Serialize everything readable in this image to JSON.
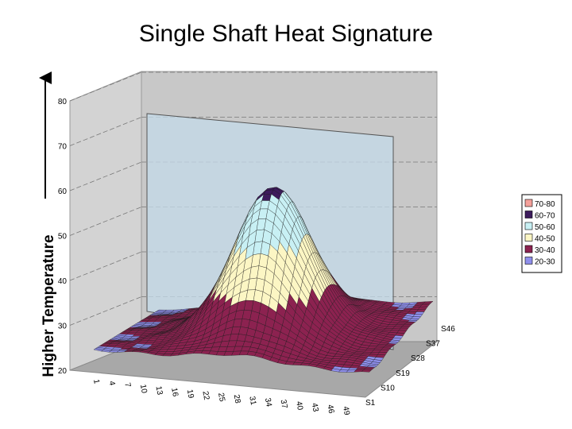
{
  "chart_data": {
    "type": "surface",
    "title": "Single Shaft Heat Signature",
    "ylabel": "Higher Temperature",
    "zlim": [
      20,
      80
    ],
    "z_ticks": [
      "20",
      "30",
      "40",
      "50",
      "60",
      "70",
      "80"
    ],
    "x_ticks": [
      "1",
      "4",
      "7",
      "10",
      "13",
      "16",
      "19",
      "22",
      "25",
      "28",
      "31",
      "34",
      "37",
      "40",
      "43",
      "46",
      "49"
    ],
    "series_ticks": [
      "S1",
      "S10",
      "S19",
      "S28",
      "S37",
      "S46"
    ],
    "peak_value": 62,
    "base_value": 30,
    "bands": [
      {
        "label": "70-80",
        "color": "#f4a09a"
      },
      {
        "label": "60-70",
        "color": "#3d1b5c"
      },
      {
        "label": "50-60",
        "color": "#c8f0f4"
      },
      {
        "label": "40-50",
        "color": "#fcf6c4"
      },
      {
        "label": "30-40",
        "color": "#8c2250"
      },
      {
        "label": "20-30",
        "color": "#8f8fec"
      }
    ],
    "grid": true,
    "legend": "right"
  }
}
